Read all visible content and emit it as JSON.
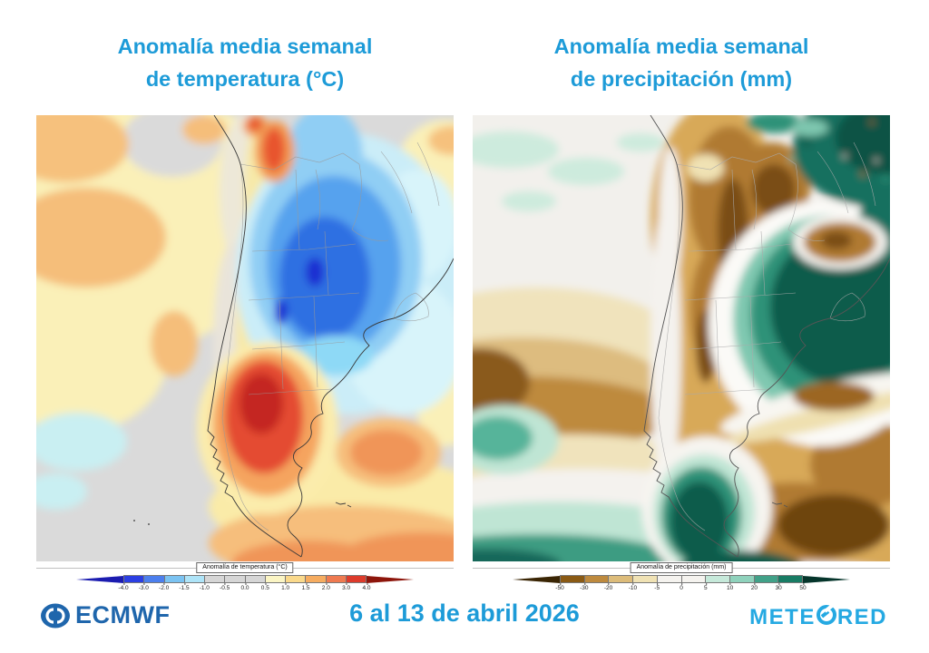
{
  "page": {
    "background": "#ffffff",
    "title_color": "#1d9bd8"
  },
  "left_panel": {
    "title_line1": "Anomalía media semanal",
    "title_line2": "de temperatura (°C)",
    "colorbar": {
      "title": "Anomalía de temperatura (°C)",
      "ticks": [
        "-4.0",
        "-3.0",
        "-2.0",
        "-1.5",
        "-1.0",
        "-0.5",
        "0.0",
        "0.5",
        "1.0",
        "1.5",
        "2.0",
        "3.0",
        "4.0"
      ],
      "arrow_left_color": "#1b1cb0",
      "arrow_right_color": "#8d150b",
      "segment_colors": [
        "#2b3fe3",
        "#4c7fee",
        "#7bc3f2",
        "#aee4f8",
        "#d6d6d6",
        "#d6d6d6",
        "#d6d6d6",
        "#fbf5c4",
        "#fad98b",
        "#f6ac60",
        "#ef7a50",
        "#dd3b2b"
      ]
    }
  },
  "right_panel": {
    "title_line1": "Anomalía media semanal",
    "title_line2": "de precipitación (mm)",
    "colorbar": {
      "title": "Anomalía de precipitación (mm)",
      "ticks": [
        "-50",
        "-30",
        "-20",
        "-10",
        "-5",
        "0",
        "5",
        "10",
        "20",
        "30",
        "50"
      ],
      "arrow_left_color": "#3a2504",
      "arrow_right_color": "#05352b",
      "segment_colors": [
        "#8a5a14",
        "#be8a3e",
        "#ddbc7a",
        "#f0e2b4",
        "#f5f3ef",
        "#f5f3ef",
        "#c6e9da",
        "#8fd2bc",
        "#41a188",
        "#187c64"
      ]
    }
  },
  "footer": {
    "ecmwf_label": "ECMWF",
    "date_text": "6 al 13 de abril 2026",
    "meteored_prefix": "METE",
    "meteored_suffix": "RED",
    "ecmwf_color": "#1f66ac",
    "meteored_color": "#25a9e2",
    "date_color": "#1d9bd8"
  }
}
